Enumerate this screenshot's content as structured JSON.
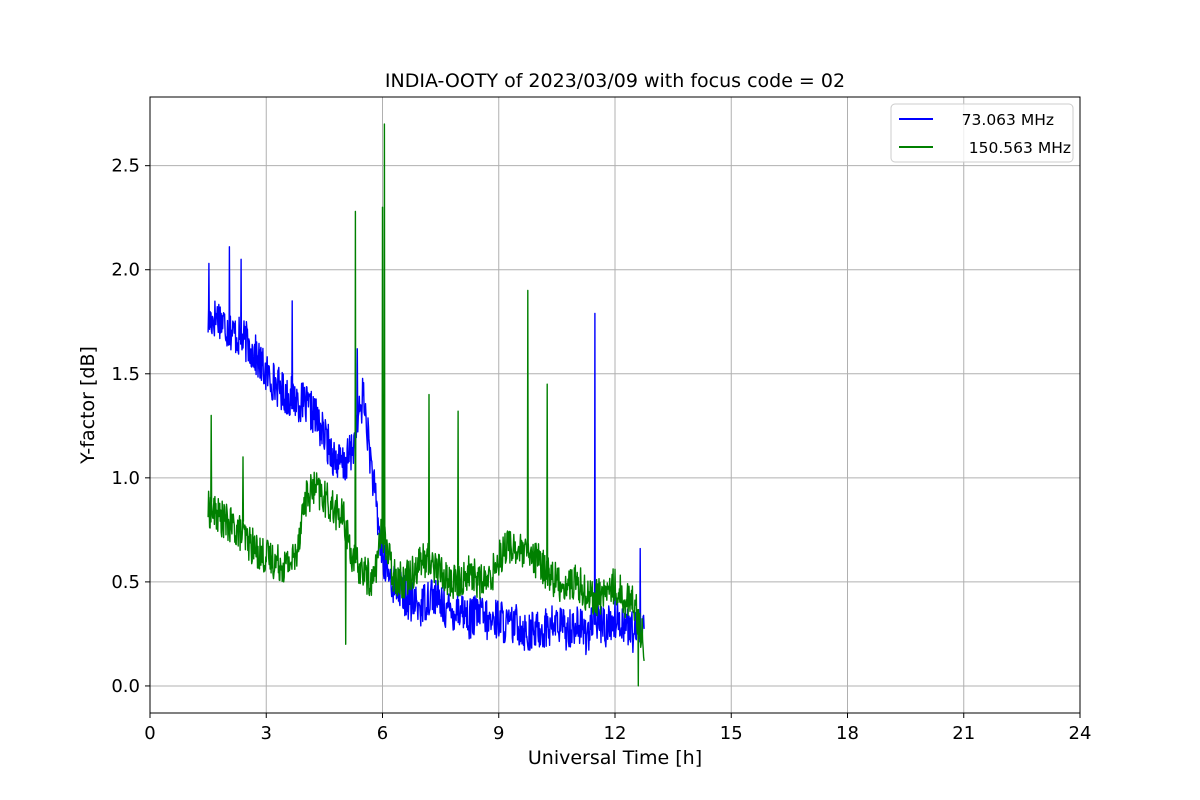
{
  "chart_data": {
    "type": "line",
    "title": "INDIA-OOTY of 2023/03/09 with focus code = 02",
    "xlabel": "Universal Time [h]",
    "ylabel": "Y-factor [dB]",
    "xlim": [
      0,
      24
    ],
    "ylim": [
      -0.13,
      2.83
    ],
    "xticks": [
      0,
      3,
      6,
      9,
      12,
      15,
      18,
      21,
      24
    ],
    "yticks": [
      0.0,
      0.5,
      1.0,
      1.5,
      2.0,
      2.5
    ],
    "xtick_labels": [
      "0",
      "3",
      "6",
      "9",
      "12",
      "15",
      "18",
      "21",
      "24"
    ],
    "ytick_labels": [
      "0.0",
      "0.5",
      "1.0",
      "1.5",
      "2.0",
      "2.5"
    ],
    "grid": true,
    "legend_position": "upper right",
    "series": [
      {
        "name": "73.063 MHz",
        "color": "#0000ff",
        "x": [
          1.5,
          1.75,
          2.0,
          2.25,
          2.5,
          2.75,
          3.0,
          3.25,
          3.5,
          3.75,
          4.0,
          4.25,
          4.5,
          4.75,
          5.0,
          5.25,
          5.5,
          5.75,
          6.0,
          6.25,
          6.5,
          6.75,
          7.0,
          7.25,
          7.5,
          7.75,
          8.0,
          8.25,
          8.5,
          8.75,
          9.0,
          9.25,
          9.5,
          9.75,
          10.0,
          10.25,
          10.5,
          10.75,
          11.0,
          11.25,
          11.5,
          11.75,
          12.0,
          12.25,
          12.5,
          12.75
        ],
        "y": [
          1.75,
          1.78,
          1.72,
          1.68,
          1.65,
          1.58,
          1.5,
          1.45,
          1.4,
          1.38,
          1.35,
          1.3,
          1.2,
          1.1,
          1.05,
          1.15,
          1.4,
          1.0,
          0.6,
          0.5,
          0.45,
          0.4,
          0.38,
          0.45,
          0.4,
          0.35,
          0.38,
          0.32,
          0.35,
          0.3,
          0.33,
          0.28,
          0.3,
          0.25,
          0.27,
          0.28,
          0.3,
          0.27,
          0.3,
          0.25,
          0.32,
          0.28,
          0.33,
          0.3,
          0.25,
          0.3
        ],
        "spikes": [
          [
            1.52,
            2.03
          ],
          [
            2.05,
            2.11
          ],
          [
            2.35,
            2.05
          ],
          [
            3.67,
            1.85
          ],
          [
            5.35,
            1.62
          ],
          [
            6.0,
            1.2
          ],
          [
            11.48,
            1.79
          ],
          [
            12.65,
            0.66
          ]
        ],
        "noise_amplitude": 0.1
      },
      {
        "name": "150.563 MHz",
        "color": "#008000",
        "x": [
          1.5,
          1.75,
          2.0,
          2.25,
          2.5,
          2.75,
          3.0,
          3.25,
          3.5,
          3.75,
          4.0,
          4.25,
          4.5,
          4.75,
          5.0,
          5.25,
          5.5,
          5.75,
          6.0,
          6.25,
          6.5,
          6.75,
          7.0,
          7.25,
          7.5,
          7.75,
          8.0,
          8.25,
          8.5,
          8.75,
          9.0,
          9.25,
          9.5,
          9.75,
          10.0,
          10.25,
          10.5,
          10.75,
          11.0,
          11.25,
          11.5,
          11.75,
          12.0,
          12.25,
          12.5,
          12.75
        ],
        "y": [
          0.85,
          0.82,
          0.78,
          0.75,
          0.7,
          0.65,
          0.62,
          0.6,
          0.58,
          0.62,
          0.9,
          0.95,
          0.9,
          0.85,
          0.8,
          0.6,
          0.55,
          0.5,
          0.75,
          0.55,
          0.5,
          0.55,
          0.6,
          0.6,
          0.55,
          0.5,
          0.5,
          0.55,
          0.5,
          0.5,
          0.62,
          0.68,
          0.65,
          0.62,
          0.6,
          0.55,
          0.5,
          0.48,
          0.5,
          0.45,
          0.42,
          0.45,
          0.48,
          0.42,
          0.4,
          0.2
        ],
        "spikes": [
          [
            1.58,
            1.3
          ],
          [
            2.4,
            1.1
          ],
          [
            5.05,
            0.2
          ],
          [
            5.3,
            2.28
          ],
          [
            6.05,
            2.7
          ],
          [
            6.0,
            2.3
          ],
          [
            7.2,
            1.4
          ],
          [
            7.95,
            1.32
          ],
          [
            9.75,
            1.9
          ],
          [
            10.25,
            1.45
          ],
          [
            12.6,
            0.0
          ]
        ],
        "noise_amplitude": 0.09
      }
    ]
  }
}
